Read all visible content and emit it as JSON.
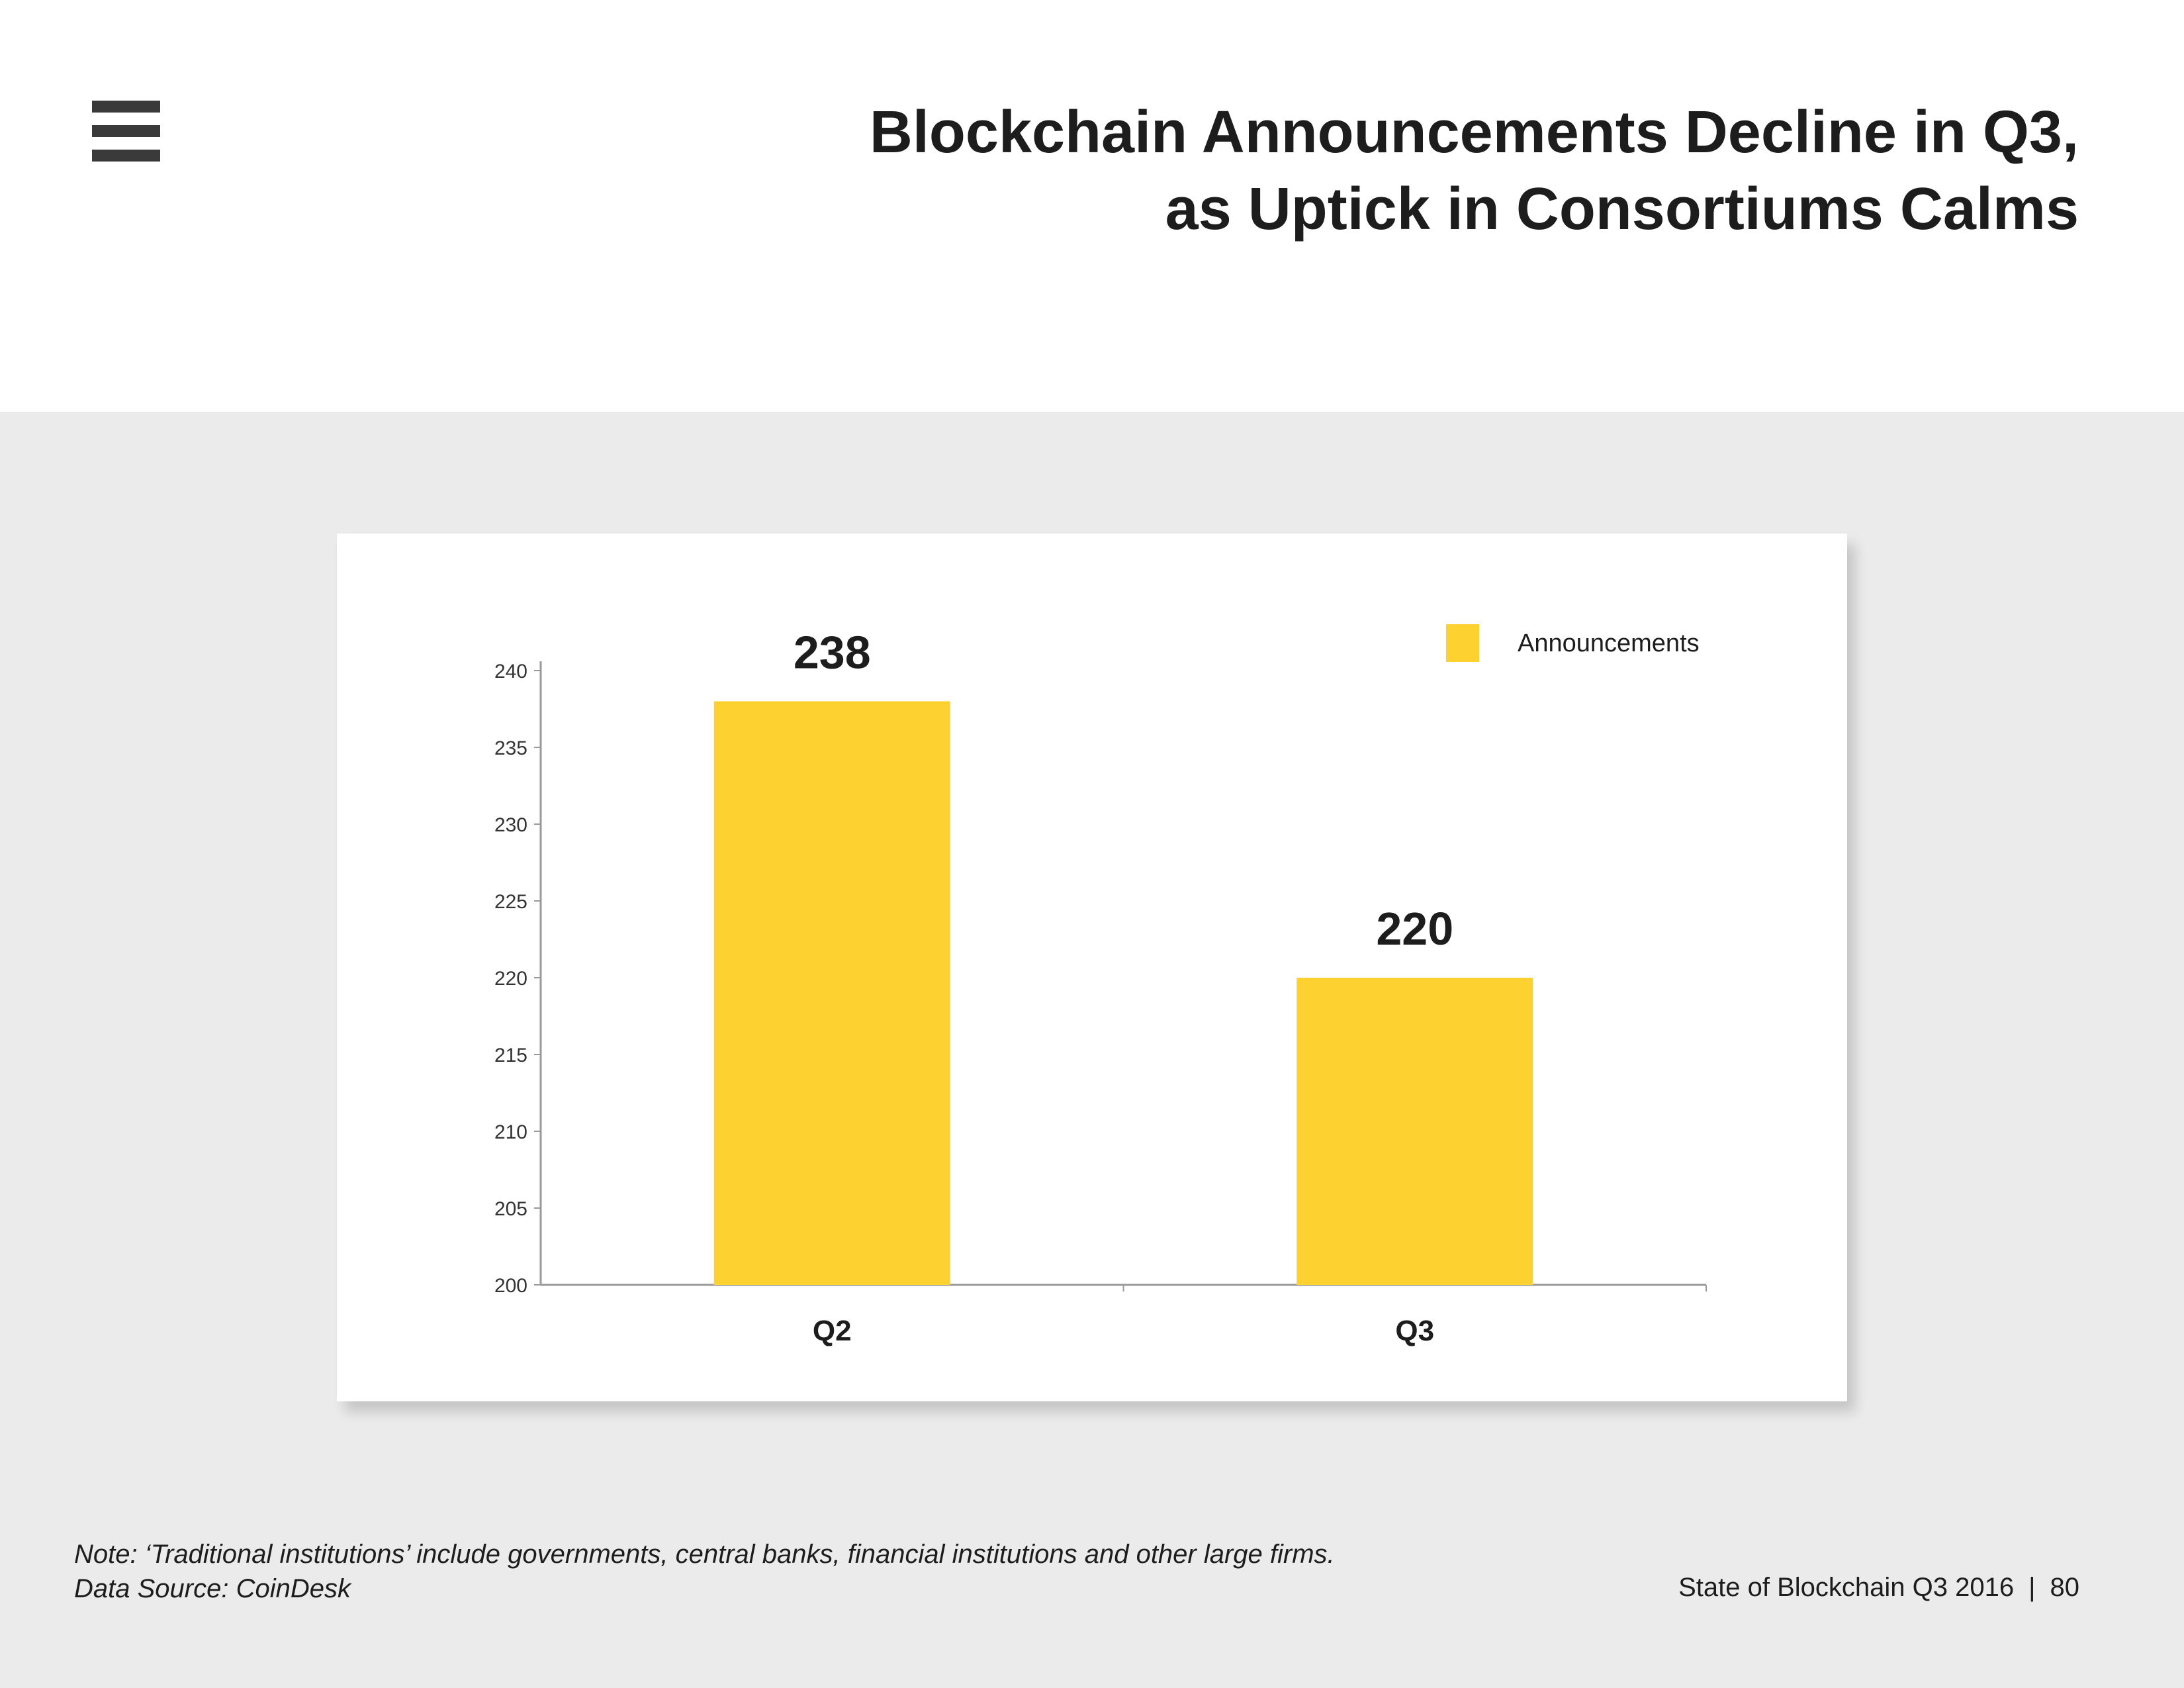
{
  "header": {
    "title_line1": "Blockchain Announcements Decline in Q3,",
    "title_line2": "as Uptick in Consortiums Calms",
    "menu_icon": "hamburger-menu-icon"
  },
  "chart_data": {
    "type": "bar",
    "categories": [
      "Q2",
      "Q3"
    ],
    "series": [
      {
        "name": "Announcements",
        "values": [
          238,
          220
        ]
      }
    ],
    "data_labels": [
      "238",
      "220"
    ],
    "ylim": [
      200,
      240
    ],
    "yticks": [
      200,
      205,
      210,
      215,
      220,
      225,
      230,
      235,
      240
    ],
    "xlabel": "",
    "ylabel": "",
    "legend": "top-right",
    "grid": false,
    "bar_color": "#fdd12f"
  },
  "footer": {
    "note": "Note: ‘Traditional institutions’ include governments, central banks, financial institutions and other large firms.",
    "source": "Data Source: CoinDesk",
    "report": "State of Blockchain Q3 2016",
    "separator": "|",
    "page_number": "80"
  }
}
